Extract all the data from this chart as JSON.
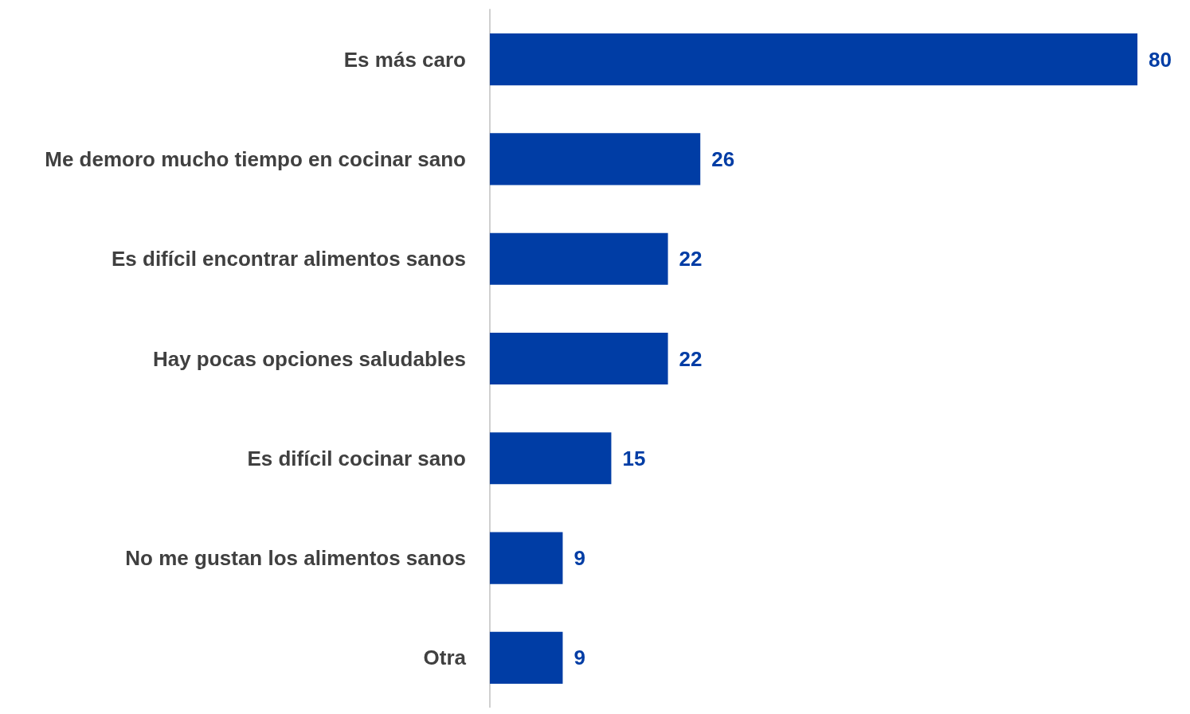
{
  "chart_data": {
    "type": "bar",
    "orientation": "horizontal",
    "categories": [
      "Es más caro",
      "Me demoro mucho tiempo en cocinar sano",
      "Es difícil encontrar alimentos sanos",
      "Hay pocas opciones saludables",
      "Es difícil cocinar sano",
      "No me gustan los alimentos sanos",
      "Otra"
    ],
    "values": [
      80,
      26,
      22,
      22,
      15,
      9,
      9
    ],
    "color": "#003da5",
    "data_labels": true
  }
}
